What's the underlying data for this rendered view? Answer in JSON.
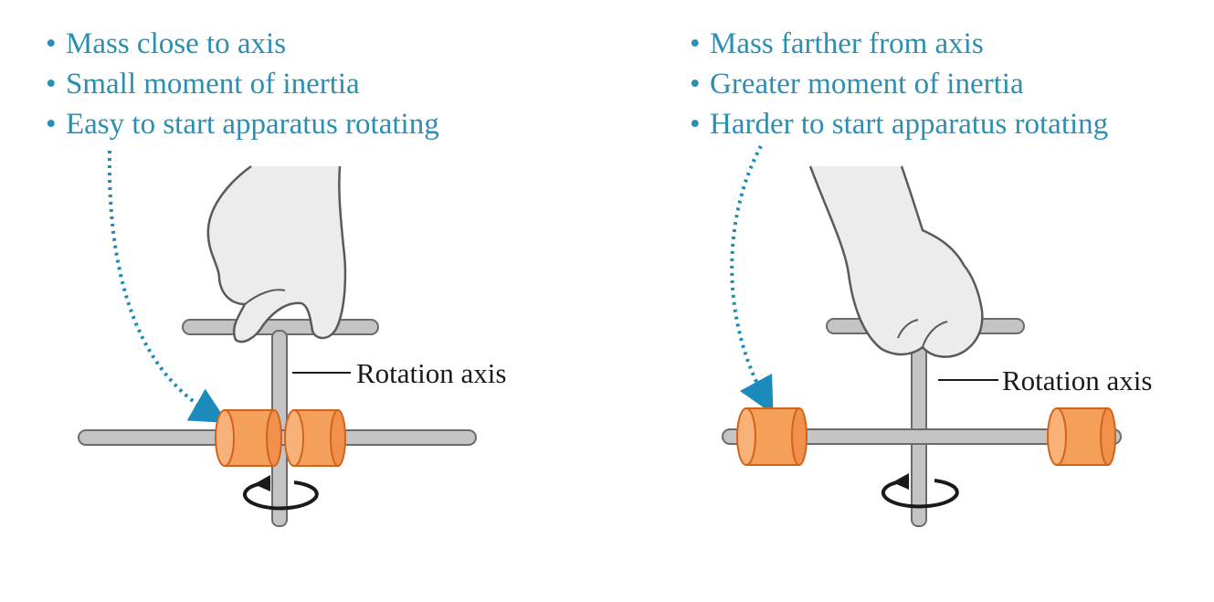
{
  "colors": {
    "text_accent": "#2a8fb3",
    "rod_fill": "#c4c4c4",
    "rod_stroke": "#6b6b6b",
    "mass_fill": "#f5a05a",
    "mass_stroke": "#d0631d",
    "hand_fill": "#ececec",
    "hand_stroke": "#5a5a5a",
    "arrow": "#1a1a1a",
    "dotted_arrow": "#1b8bbb"
  },
  "left": {
    "bullets": [
      "Mass close to axis",
      "Small moment of inertia",
      "Easy to start apparatus rotating"
    ],
    "axis_label": "Rotation axis"
  },
  "right": {
    "bullets": [
      "Mass farther from axis",
      "Greater moment of inertia",
      "Harder to start apparatus rotating"
    ],
    "axis_label": "Rotation axis"
  },
  "icons": {
    "hand": "hand-icon",
    "rotation_arrow": "rotation-arrow-icon",
    "pointer_arrow": "dotted-arrow-icon"
  }
}
